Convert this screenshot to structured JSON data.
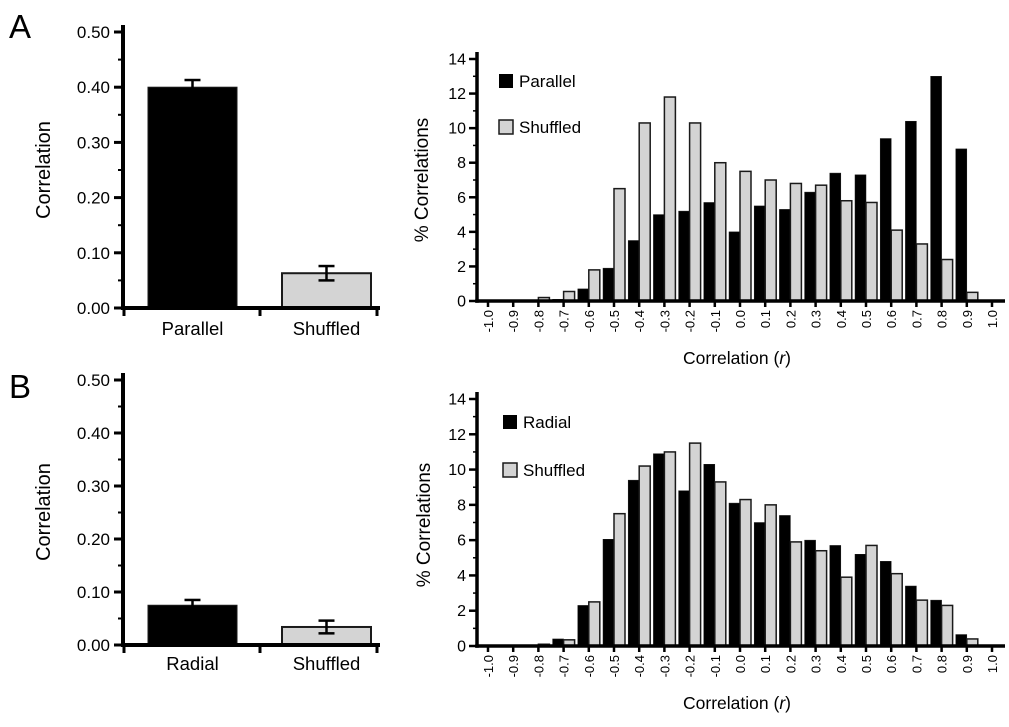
{
  "panels": [
    {
      "label": "A"
    },
    {
      "label": "B"
    }
  ],
  "colors": {
    "black": "#000000",
    "gray": "#d4d4d4",
    "bar_stroke": "#1a1a1a",
    "axis": "#000000",
    "text": "#000000",
    "background": "#ffffff"
  },
  "chart_data": [
    {
      "id": "panel-a-bar",
      "panel": "A",
      "type": "bar",
      "categories": [
        "Parallel",
        "Shuffled"
      ],
      "values": [
        0.4,
        0.063
      ],
      "errors": [
        0.013,
        0.013
      ],
      "bar_colors": [
        "black",
        "gray"
      ],
      "ylabel": "Correlation",
      "ylim": [
        0,
        0.5
      ],
      "yticks": [
        "0.00",
        "0.10",
        "0.20",
        "0.30",
        "0.40",
        "0.50"
      ],
      "grid": false,
      "legend_position": "none"
    },
    {
      "id": "panel-a-hist",
      "panel": "A",
      "type": "bar",
      "subtype": "paired-histogram",
      "categories": [
        "-1.0",
        "-0.9",
        "-0.8",
        "-0.7",
        "-0.6",
        "-0.5",
        "-0.4",
        "-0.3",
        "-0.2",
        "-0.1",
        "0.0",
        "0.1",
        "0.2",
        "0.3",
        "0.4",
        "0.5",
        "0.6",
        "0.7",
        "0.8",
        "0.9",
        "1.0"
      ],
      "series": [
        {
          "name": "Parallel",
          "color": "black",
          "values": [
            0,
            0,
            0,
            0.1,
            0.7,
            1.9,
            3.5,
            5.0,
            5.2,
            5.7,
            4.0,
            5.5,
            5.3,
            6.3,
            7.4,
            7.3,
            9.4,
            10.4,
            13.0,
            8.8,
            0
          ]
        },
        {
          "name": "Shuffled",
          "color": "gray",
          "values": [
            0,
            0,
            0.2,
            0.55,
            1.8,
            6.5,
            10.3,
            11.8,
            10.3,
            8.0,
            7.5,
            7.0,
            6.8,
            6.7,
            5.8,
            5.7,
            4.1,
            3.3,
            2.4,
            0.5,
            0
          ]
        }
      ],
      "ylabel": "% Correlations",
      "xlabel_prefix": "Correlation (",
      "xlabel_italic": "r",
      "xlabel_suffix": ")",
      "ylim": [
        0,
        14
      ],
      "yticks": [
        0,
        2,
        4,
        6,
        8,
        10,
        12,
        14
      ],
      "grid": false,
      "legend_position": "top-left"
    },
    {
      "id": "panel-b-bar",
      "panel": "B",
      "type": "bar",
      "categories": [
        "Radial",
        "Shuffled"
      ],
      "values": [
        0.075,
        0.034
      ],
      "errors": [
        0.01,
        0.012
      ],
      "bar_colors": [
        "black",
        "gray"
      ],
      "ylabel": "Correlation",
      "ylim": [
        0,
        0.5
      ],
      "yticks": [
        "0.00",
        "0.10",
        "0.20",
        "0.30",
        "0.40",
        "0.50"
      ],
      "grid": false,
      "legend_position": "none"
    },
    {
      "id": "panel-b-hist",
      "panel": "B",
      "type": "bar",
      "subtype": "paired-histogram",
      "categories": [
        "-1.0",
        "-0.9",
        "-0.8",
        "-0.7",
        "-0.6",
        "-0.5",
        "-0.4",
        "-0.3",
        "-0.2",
        "-0.1",
        "0.0",
        "0.1",
        "0.2",
        "0.3",
        "0.4",
        "0.5",
        "0.6",
        "0.7",
        "0.8",
        "0.9",
        "1.0"
      ],
      "series": [
        {
          "name": "Radial",
          "color": "black",
          "values": [
            0,
            0,
            0.05,
            0.4,
            2.3,
            6.05,
            9.4,
            10.9,
            8.8,
            10.3,
            8.1,
            7.0,
            7.4,
            6.0,
            5.7,
            5.2,
            4.8,
            3.4,
            2.6,
            0.65,
            0
          ]
        },
        {
          "name": "Shuffled",
          "color": "gray",
          "values": [
            0,
            0,
            0.1,
            0.35,
            2.5,
            7.5,
            10.2,
            11.0,
            11.5,
            9.3,
            8.3,
            8.0,
            5.9,
            5.4,
            3.9,
            5.7,
            4.1,
            2.6,
            2.3,
            0.4,
            0
          ]
        }
      ],
      "ylabel": "% Correlations",
      "xlabel_prefix": "Correlation (",
      "xlabel_italic": "r",
      "xlabel_suffix": ")",
      "ylim": [
        0,
        14
      ],
      "yticks": [
        0,
        2,
        4,
        6,
        8,
        10,
        12,
        14
      ],
      "grid": false,
      "legend_position": "top-left"
    }
  ]
}
